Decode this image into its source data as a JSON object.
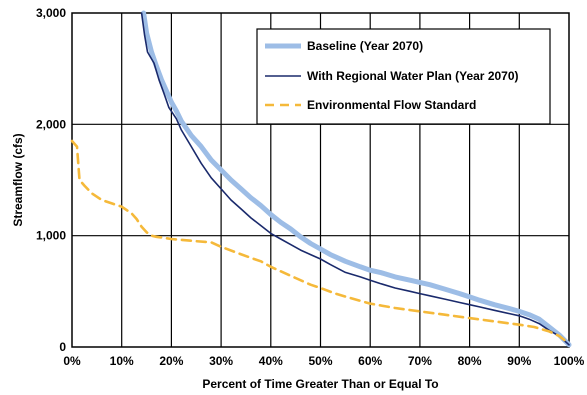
{
  "chart_data": {
    "type": "line",
    "title": "",
    "xlabel": "Percent of Time Greater Than or Equal To",
    "ylabel": "Streamflow (cfs)",
    "xlim": [
      0,
      100
    ],
    "ylim": [
      0,
      3000
    ],
    "x_ticks": [
      "0%",
      "10%",
      "20%",
      "30%",
      "40%",
      "50%",
      "60%",
      "70%",
      "80%",
      "90%",
      "100%"
    ],
    "y_ticks": [
      "0",
      "1,000",
      "2,000",
      "3,000"
    ],
    "grid": true,
    "legend_position": "top-right",
    "series": [
      {
        "name": "Baseline (Year 2070)",
        "color": "#9dbde6",
        "style": "solid-thick",
        "points": [
          [
            14.4,
            3000
          ],
          [
            15,
            2820
          ],
          [
            16,
            2650
          ],
          [
            17,
            2520
          ],
          [
            18,
            2400
          ],
          [
            19,
            2300
          ],
          [
            20,
            2200
          ],
          [
            21,
            2120
          ],
          [
            22,
            2030
          ],
          [
            24,
            1900
          ],
          [
            26,
            1800
          ],
          [
            28,
            1680
          ],
          [
            30,
            1590
          ],
          [
            32,
            1500
          ],
          [
            34,
            1420
          ],
          [
            36,
            1340
          ],
          [
            38,
            1270
          ],
          [
            40,
            1190
          ],
          [
            42,
            1120
          ],
          [
            44,
            1060
          ],
          [
            46,
            990
          ],
          [
            48,
            930
          ],
          [
            50,
            880
          ],
          [
            52,
            830
          ],
          [
            55,
            770
          ],
          [
            58,
            720
          ],
          [
            60,
            690
          ],
          [
            62,
            670
          ],
          [
            65,
            630
          ],
          [
            68,
            600
          ],
          [
            70,
            580
          ],
          [
            72,
            560
          ],
          [
            75,
            520
          ],
          [
            78,
            480
          ],
          [
            80,
            450
          ],
          [
            82,
            420
          ],
          [
            85,
            380
          ],
          [
            88,
            345
          ],
          [
            90,
            320
          ],
          [
            92,
            290
          ],
          [
            94,
            250
          ],
          [
            96,
            180
          ],
          [
            98,
            110
          ],
          [
            100,
            20
          ]
        ]
      },
      {
        "name": "With Regional Water Plan (Year 2070)",
        "color": "#1a2a6c",
        "style": "solid-thin",
        "points": [
          [
            14,
            3000
          ],
          [
            14.6,
            2800
          ],
          [
            15.2,
            2650
          ],
          [
            16.5,
            2550
          ],
          [
            17.5,
            2400
          ],
          [
            18.5,
            2280
          ],
          [
            19.5,
            2150
          ],
          [
            21,
            2050
          ],
          [
            22,
            1950
          ],
          [
            24,
            1800
          ],
          [
            26,
            1650
          ],
          [
            28,
            1520
          ],
          [
            30,
            1420
          ],
          [
            32,
            1320
          ],
          [
            34,
            1240
          ],
          [
            36,
            1160
          ],
          [
            38,
            1090
          ],
          [
            40,
            1020
          ],
          [
            42,
            970
          ],
          [
            44,
            920
          ],
          [
            46,
            870
          ],
          [
            48,
            830
          ],
          [
            50,
            790
          ],
          [
            52,
            740
          ],
          [
            55,
            670
          ],
          [
            58,
            630
          ],
          [
            60,
            600
          ],
          [
            62,
            570
          ],
          [
            65,
            530
          ],
          [
            68,
            500
          ],
          [
            70,
            480
          ],
          [
            72,
            460
          ],
          [
            75,
            430
          ],
          [
            78,
            400
          ],
          [
            80,
            380
          ],
          [
            82,
            360
          ],
          [
            85,
            330
          ],
          [
            88,
            300
          ],
          [
            90,
            280
          ],
          [
            92,
            250
          ],
          [
            94,
            210
          ],
          [
            96,
            150
          ],
          [
            98,
            100
          ],
          [
            100,
            20
          ]
        ]
      },
      {
        "name": "Environmental Flow Standard",
        "color": "#f5b93a",
        "style": "dashed",
        "points": [
          [
            0,
            1850
          ],
          [
            1,
            1800
          ],
          [
            1.5,
            1500
          ],
          [
            2.5,
            1450
          ],
          [
            4,
            1380
          ],
          [
            6,
            1320
          ],
          [
            8,
            1290
          ],
          [
            10,
            1260
          ],
          [
            12,
            1200
          ],
          [
            13,
            1150
          ],
          [
            14,
            1080
          ],
          [
            15,
            1030
          ],
          [
            16,
            1000
          ],
          [
            17,
            990
          ],
          [
            20,
            970
          ],
          [
            25,
            950
          ],
          [
            28,
            940
          ],
          [
            30,
            900
          ],
          [
            33,
            850
          ],
          [
            36,
            800
          ],
          [
            38,
            770
          ],
          [
            40,
            720
          ],
          [
            42,
            680
          ],
          [
            45,
            620
          ],
          [
            48,
            560
          ],
          [
            50,
            530
          ],
          [
            53,
            480
          ],
          [
            56,
            440
          ],
          [
            60,
            390
          ],
          [
            65,
            350
          ],
          [
            70,
            320
          ],
          [
            75,
            290
          ],
          [
            80,
            260
          ],
          [
            85,
            230
          ],
          [
            90,
            200
          ],
          [
            93,
            180
          ],
          [
            96,
            140
          ],
          [
            98,
            100
          ],
          [
            100,
            30
          ]
        ]
      }
    ]
  }
}
